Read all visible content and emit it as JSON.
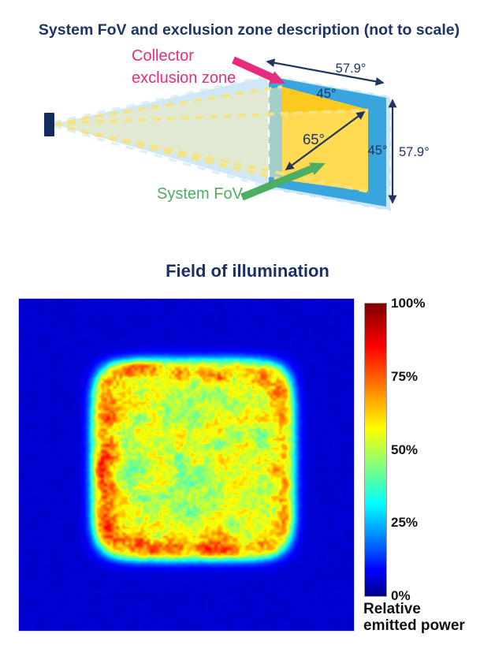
{
  "diagram": {
    "title": "System FoV and exclusion zone description (not to scale)",
    "collector_label_line1": "Collector",
    "collector_label_line2": "exclusion zone",
    "system_fov_label": "System FoV",
    "angles": {
      "horizontal_outer": "57.9°",
      "horizontal_inner": "45°",
      "diagonal": "65°",
      "vertical_inner": "45°",
      "vertical_outer": "57.9°"
    },
    "colors": {
      "title_navy": "#1e3464",
      "collector_pink": "#e82b7d",
      "fov_green": "#4cae63",
      "exclusion_blue": "#38a5dc",
      "fov_yellow": "#ffda52",
      "fov_gold": "#fcca1e",
      "cone_blue": "#a9d6ef",
      "emitter_navy": "#152a5e",
      "arrow_navy": "#23355c"
    }
  },
  "chart_data": {
    "type": "heatmap",
    "title": "Field of illumination",
    "colormap": "jet",
    "grid": false,
    "colorbar": {
      "ticks": [
        {
          "label": "100%",
          "value": 1.0
        },
        {
          "label": "75%",
          "value": 0.75
        },
        {
          "label": "50%",
          "value": 0.5
        },
        {
          "label": "25%",
          "value": 0.25
        },
        {
          "label": "0%",
          "value": 0.0
        }
      ],
      "caption_lines": [
        "Relative",
        "emitted power"
      ]
    },
    "field": {
      "description": "Square flat-top illumination pattern: ~52% relative-power plateau with a 60-75% hot ring along the square edge (strongest on left and bottom), falling through a cyan/green fringe to a ~5% dark-blue background, with multiplicative speckle noise.",
      "center_offset": [
        0.04,
        -0.03
      ],
      "flat_half_fraction": 0.6,
      "falloff_width": 0.035,
      "ring_center": 0.93,
      "ring_sigma": 0.1,
      "center_level": 0.52,
      "ring_level": 0.7,
      "ring_left_boost": 0.55,
      "ring_bottom_boost": 0.25,
      "background_level": 0.05,
      "noise_amplitude": 0.14,
      "seed": 20240613
    }
  }
}
